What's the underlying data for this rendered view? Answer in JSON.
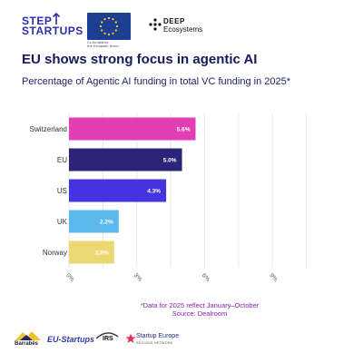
{
  "header": {
    "step_startups": {
      "line1": "STEP",
      "line2": "STARTUPS"
    },
    "eu_caption": [
      "Co-funded by",
      "the European Union"
    ],
    "deep": {
      "line1": "DEEP",
      "line2": "Ecosystems"
    }
  },
  "colors": {
    "title": "#16195a",
    "note": "#8a1fb5",
    "bar_label": "#ffffff",
    "grid": "#e6e6ee"
  },
  "chart_data": {
    "type": "bar",
    "orientation": "horizontal",
    "title": "EU shows strong focus in agentic AI",
    "subtitle": "Percentage of Agentic AI funding in total VC funding in 2025*",
    "categories": [
      "Switzerland",
      "EU",
      "US",
      "UK",
      "Norway"
    ],
    "values": [
      5.6,
      5.0,
      4.3,
      2.2,
      2.0
    ],
    "data_labels": [
      "5.6%",
      "5.0%",
      "4.3%",
      "2.2%",
      "2.0%"
    ],
    "bar_colors": [
      "#e23fb4",
      "#2b2479",
      "#4533e0",
      "#5ab8ec",
      "#ecd872"
    ],
    "xlim": [
      0,
      11
    ],
    "x_ticks": [
      0,
      3,
      6,
      9
    ],
    "x_tick_labels": [
      "0%",
      "3%",
      "6%",
      "9%"
    ],
    "grid": true,
    "legend": "none",
    "xlabel": "",
    "ylabel": ""
  },
  "notes": {
    "line1": "*Data for 2025 reflect January–October",
    "line2": "Source: Dealroom"
  },
  "footer_logos": {
    "barrabes": "Barrabés",
    "eu_startups": "EU-Startups",
    "irs": "IRS",
    "startup_europe": "Startup Europe",
    "startup_europe_sub": "REGIONS NETWORK"
  }
}
